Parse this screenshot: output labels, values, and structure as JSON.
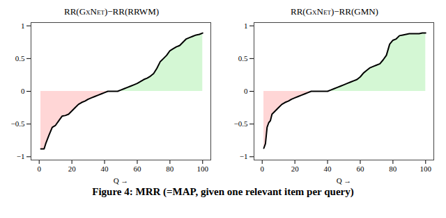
{
  "caption": "Figure 4: MRR (=MAP, given one relevant item per query)",
  "chart_data": [
    {
      "type": "line",
      "title": "RR(GxNet)−RR(RRWM)",
      "x_label": "Q →",
      "xlim": [
        -5,
        105
      ],
      "ylim": [
        -1.05,
        1.05
      ],
      "xticks": [
        0,
        20,
        40,
        60,
        80,
        100
      ],
      "yticks": [
        {
          "value": -1,
          "label": "−1"
        },
        {
          "value": -0.5,
          "label": "−0.5"
        },
        0,
        0.5,
        1
      ],
      "color": "#000000",
      "x": [
        1,
        3,
        4,
        6,
        8,
        10,
        12,
        14,
        16,
        18,
        20,
        22,
        24,
        26,
        28,
        30,
        32,
        34,
        36,
        38,
        40,
        42,
        44,
        46,
        48,
        50,
        52,
        54,
        56,
        58,
        60,
        62,
        64,
        66,
        68,
        70,
        72,
        74,
        76,
        78,
        80,
        82,
        84,
        86,
        88,
        90,
        92,
        94,
        96,
        98,
        100
      ],
      "values": [
        -0.88,
        -0.88,
        -0.8,
        -0.67,
        -0.55,
        -0.52,
        -0.45,
        -0.38,
        -0.37,
        -0.35,
        -0.3,
        -0.25,
        -0.2,
        -0.17,
        -0.15,
        -0.12,
        -0.1,
        -0.08,
        -0.06,
        -0.04,
        -0.02,
        0,
        0,
        0,
        0,
        0.02,
        0.04,
        0.06,
        0.08,
        0.1,
        0.12,
        0.15,
        0.18,
        0.2,
        0.23,
        0.27,
        0.35,
        0.45,
        0.5,
        0.55,
        0.62,
        0.65,
        0.68,
        0.7,
        0.75,
        0.8,
        0.82,
        0.84,
        0.86,
        0.87,
        0.89
      ]
    },
    {
      "type": "line",
      "title": "RR(GxNet)−RR(GMN)",
      "x_label": "Q →",
      "xlim": [
        -5,
        105
      ],
      "ylim": [
        -1.05,
        1.05
      ],
      "xticks": [
        0,
        20,
        40,
        60,
        80,
        100
      ],
      "yticks": [
        {
          "value": -1,
          "label": "−1"
        },
        {
          "value": -0.5,
          "label": "−0.5"
        },
        0,
        0.5,
        1
      ],
      "color": "#000000",
      "x": [
        1,
        2,
        3,
        4,
        5,
        6,
        8,
        10,
        12,
        14,
        16,
        18,
        20,
        22,
        24,
        26,
        28,
        30,
        32,
        34,
        36,
        38,
        40,
        42,
        44,
        46,
        48,
        50,
        52,
        54,
        56,
        58,
        60,
        62,
        64,
        66,
        68,
        70,
        72,
        74,
        76,
        78,
        80,
        82,
        84,
        86,
        88,
        90,
        92,
        94,
        96,
        98,
        100
      ],
      "values": [
        -0.87,
        -0.8,
        -0.55,
        -0.48,
        -0.45,
        -0.35,
        -0.3,
        -0.25,
        -0.2,
        -0.17,
        -0.15,
        -0.12,
        -0.1,
        -0.08,
        -0.06,
        -0.04,
        -0.02,
        0,
        0,
        0,
        0,
        0,
        0,
        0.02,
        0.04,
        0.06,
        0.08,
        0.1,
        0.12,
        0.14,
        0.16,
        0.18,
        0.22,
        0.28,
        0.32,
        0.36,
        0.38,
        0.4,
        0.42,
        0.48,
        0.55,
        0.72,
        0.78,
        0.8,
        0.85,
        0.86,
        0.87,
        0.88,
        0.88,
        0.88,
        0.88,
        0.89,
        0.89
      ]
    }
  ]
}
